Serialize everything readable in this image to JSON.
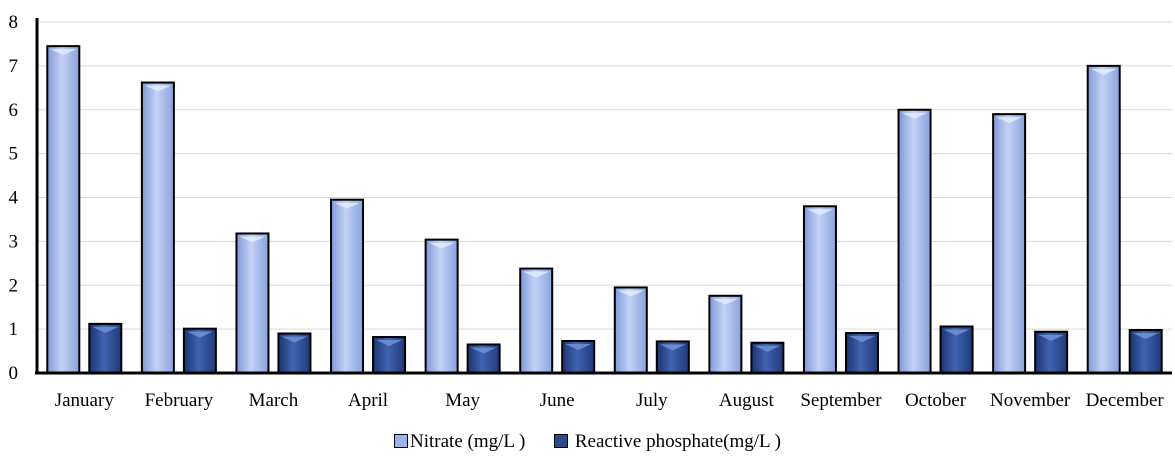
{
  "chart_data": {
    "type": "bar",
    "categories": [
      "January",
      "February",
      "March",
      "April",
      "May",
      "June",
      "July",
      "August",
      "September",
      "October",
      "November",
      "December"
    ],
    "series": [
      {
        "name": "Nitrate (mg/L )",
        "color": "#9bb3e8",
        "values": [
          7.45,
          6.62,
          3.18,
          3.95,
          3.04,
          2.38,
          1.95,
          1.76,
          3.8,
          6.0,
          5.9,
          7.0
        ]
      },
      {
        "name": "Reactive phosphate(mg/L )",
        "color": "#2b4a8c",
        "values": [
          1.12,
          1.01,
          0.9,
          0.82,
          0.65,
          0.73,
          0.72,
          0.69,
          0.91,
          1.06,
          0.94,
          0.98
        ]
      }
    ],
    "ylim": [
      0,
      8
    ],
    "yticks": [
      0,
      1,
      2,
      3,
      4,
      5,
      6,
      7,
      8
    ],
    "grid": true,
    "legend_position": "bottom"
  }
}
